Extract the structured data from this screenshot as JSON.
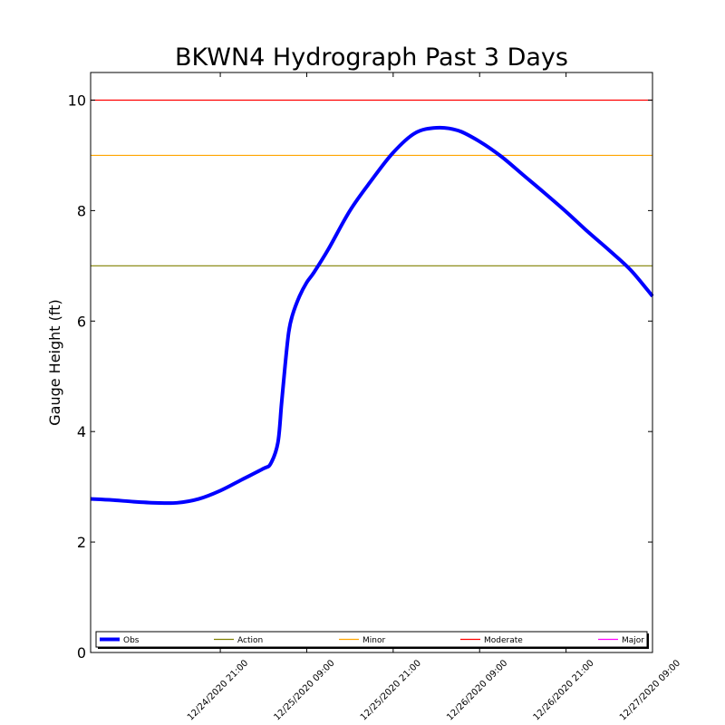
{
  "chart_data": {
    "type": "line",
    "title": "BKWN4 Hydrograph Past 3 Days",
    "xlabel": "",
    "ylabel": "Gauge Height (ft)",
    "ylim": [
      0,
      10.5
    ],
    "yticks": [
      0,
      2,
      4,
      6,
      8,
      10
    ],
    "xlim": [
      "12/24/2020 03:00",
      "12/27/2020 09:00"
    ],
    "xticks": [
      "12/24/2020 21:00",
      "12/25/2020 09:00",
      "12/25/2020 21:00",
      "12/26/2020 09:00",
      "12/26/2020 21:00",
      "12/27/2020 09:00"
    ],
    "grid": false,
    "legend_position": "bottom",
    "series": [
      {
        "name": "Obs",
        "color": "#0000ff",
        "x": [
          "12/24/2020 03:00",
          "12/24/2020 06:00",
          "12/24/2020 09:00",
          "12/24/2020 12:00",
          "12/24/2020 15:00",
          "12/24/2020 18:00",
          "12/24/2020 21:00",
          "12/25/2020 00:00",
          "12/25/2020 03:00",
          "12/25/2020 04:00",
          "12/25/2020 05:00",
          "12/25/2020 05:30",
          "12/25/2020 06:00",
          "12/25/2020 06:30",
          "12/25/2020 07:00",
          "12/25/2020 08:00",
          "12/25/2020 09:00",
          "12/25/2020 10:00",
          "12/25/2020 12:00",
          "12/25/2020 15:00",
          "12/25/2020 18:00",
          "12/25/2020 21:00",
          "12/26/2020 00:00",
          "12/26/2020 03:00",
          "12/26/2020 06:00",
          "12/26/2020 09:00",
          "12/26/2020 12:00",
          "12/26/2020 15:00",
          "12/26/2020 18:00",
          "12/26/2020 21:00",
          "12/27/2020 00:00",
          "12/27/2020 03:00",
          "12/27/2020 06:00",
          "12/27/2020 09:00"
        ],
        "y": [
          2.78,
          2.76,
          2.73,
          2.71,
          2.71,
          2.78,
          2.93,
          3.13,
          3.33,
          3.42,
          3.8,
          4.5,
          5.2,
          5.8,
          6.1,
          6.45,
          6.7,
          6.88,
          7.3,
          8.0,
          8.55,
          9.05,
          9.4,
          9.5,
          9.45,
          9.25,
          8.98,
          8.65,
          8.32,
          7.98,
          7.62,
          7.28,
          6.92,
          6.45
        ]
      }
    ],
    "thresholds": [
      {
        "name": "Action",
        "value": 7.0,
        "color": "#808000"
      },
      {
        "name": "Minor",
        "value": 9.0,
        "color": "#ffa500"
      },
      {
        "name": "Moderate",
        "value": 10.0,
        "color": "#ff0000"
      },
      {
        "name": "Major",
        "value": null,
        "color": "#ff00ff"
      }
    ]
  }
}
